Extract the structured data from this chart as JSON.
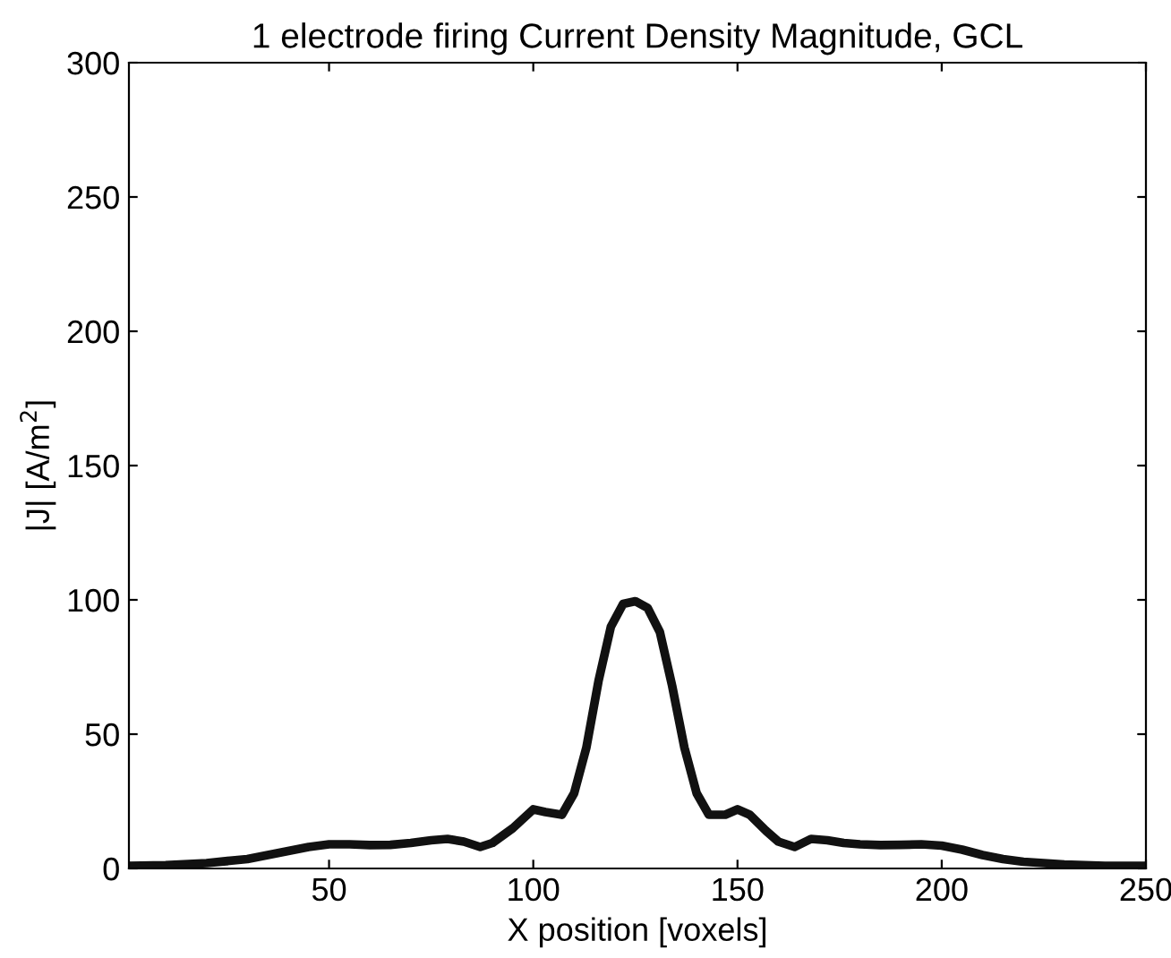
{
  "chart_data": {
    "type": "line",
    "title": "1 electrode firing Current Density Magnitude, GCL",
    "xlabel": "X position [voxels]",
    "ylabel": "|J| [A/m$^{2}$]",
    "series": [
      {
        "color": "#111111",
        "x": [
          1,
          10,
          20,
          30,
          35,
          40,
          45,
          50,
          55,
          60,
          65,
          70,
          75,
          79,
          83,
          87,
          90,
          95,
          100,
          103,
          107,
          110,
          113,
          116,
          119,
          122,
          125,
          128,
          131,
          134,
          137,
          140,
          143,
          147,
          150,
          153,
          157,
          160,
          164,
          168,
          172,
          176,
          180,
          185,
          190,
          195,
          200,
          205,
          210,
          215,
          220,
          225,
          230,
          240,
          250
        ],
        "values": [
          1,
          1.2,
          2,
          3.5,
          5,
          6.5,
          8,
          9,
          9,
          8.7,
          8.8,
          9.5,
          10.5,
          11,
          10,
          8,
          9.5,
          15,
          22,
          21,
          20,
          28,
          45,
          70,
          90,
          98.5,
          99.5,
          97,
          88,
          68,
          45,
          28,
          20,
          20,
          22,
          20,
          14,
          10,
          8,
          11,
          10.5,
          9.5,
          9,
          8.7,
          8.8,
          9,
          8.5,
          7,
          5,
          3.5,
          2.5,
          2,
          1.5,
          1,
          1
        ]
      }
    ],
    "xlim": [
      1,
      250
    ],
    "ylim": [
      0,
      300
    ],
    "xticks": [
      50,
      100,
      150,
      200,
      250
    ],
    "yticks": [
      0,
      50,
      100,
      150,
      200,
      250,
      300
    ],
    "grid": false,
    "line_style": "solid",
    "marker": "none"
  }
}
